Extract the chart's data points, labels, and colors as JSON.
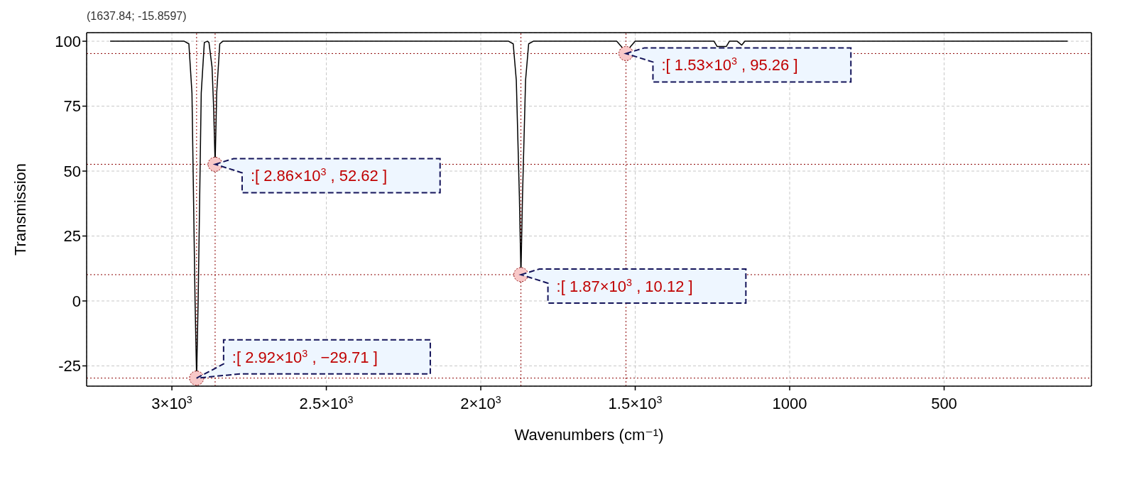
{
  "chart_data": {
    "type": "line",
    "xlabel": "Wavenumbers (cm⁻¹)",
    "ylabel": "Transmission",
    "x": [
      3200,
      2960,
      2945,
      2935,
      2925,
      2920,
      2915,
      2905,
      2895,
      2885,
      2880,
      2870,
      2865,
      2860,
      2855,
      2845,
      2835,
      1910,
      1895,
      1885,
      1875,
      1870,
      1865,
      1855,
      1845,
      1830,
      1560,
      1545,
      1530,
      1515,
      1500,
      1245,
      1235,
      1205,
      1195,
      1170,
      1155,
      1145,
      100
    ],
    "series": [
      {
        "color": "#000000",
        "values": [
          100,
          100,
          99,
          80,
          0,
          -29.71,
          0,
          80,
          99.5,
          100,
          99.5,
          90,
          75,
          52.62,
          80,
          99,
          100,
          100,
          99,
          85,
          40,
          10.12,
          40,
          85,
          99,
          100,
          100,
          98,
          95.26,
          98,
          100,
          100,
          98,
          98,
          100,
          100,
          98.5,
          100,
          100
        ]
      }
    ],
    "xlim": [
      3276,
      23
    ],
    "ylim": [
      -32.8,
      103.3
    ],
    "xticks": [
      {
        "value": 3000,
        "label": "3×10$^{3}$"
      },
      {
        "value": 2500,
        "label": "2.5×10$^{3}$"
      },
      {
        "value": 2000,
        "label": "2×10$^{3}$"
      },
      {
        "value": 1500,
        "label": "1.5×10$^{3}$"
      },
      1000,
      500
    ],
    "yticks": [
      -25,
      0,
      25,
      50,
      75,
      100
    ],
    "grid": true,
    "marker": "none",
    "line_style": "solid",
    "ref_lines": [
      {
        "axis": "x",
        "value": 2920,
        "color": "#8b0000",
        "line_style": "dotted"
      },
      {
        "axis": "x",
        "value": 2860,
        "color": "#8b0000",
        "line_style": "dotted"
      },
      {
        "axis": "x",
        "value": 1870,
        "color": "#8b0000",
        "line_style": "dotted"
      },
      {
        "axis": "x",
        "value": 1530,
        "color": "#8b0000",
        "line_style": "dotted"
      },
      {
        "axis": "y",
        "value": -29.71,
        "color": "#8b0000",
        "line_style": "dotted"
      },
      {
        "axis": "y",
        "value": 52.62,
        "color": "#8b0000",
        "line_style": "dotted"
      },
      {
        "axis": "y",
        "value": 10.12,
        "color": "#8b0000",
        "line_style": "dotted"
      },
      {
        "axis": "y",
        "value": 95.26,
        "color": "#8b0000",
        "line_style": "dotted"
      }
    ],
    "annotations": [
      "(1637.84; -15.8597)",
      {
        "text": ":[ 2.92×10$^{3}$ , −29.71 ]",
        "x": 2920,
        "y": -29.71
      },
      {
        "text": ":[ 2.86×10$^{3}$ , 52.62 ]",
        "x": 2860,
        "y": 52.62
      },
      {
        "text": ":[ 1.87×10$^{3}$ , 10.12 ]",
        "x": 1870,
        "y": 10.12
      },
      {
        "text": ":[ 1.53×10$^{3}$ , 95.26 ]",
        "x": 1530,
        "y": 95.26
      }
    ]
  }
}
